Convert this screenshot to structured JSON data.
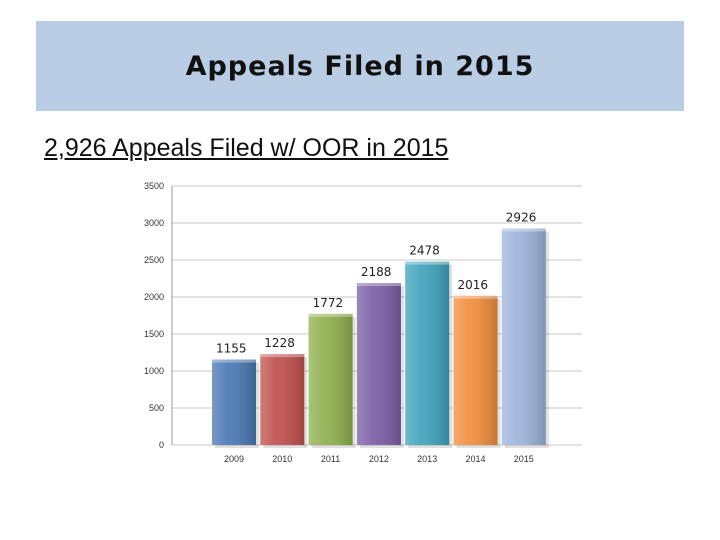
{
  "slide": {
    "title": "Appeals Filed in 2015",
    "subtitle": "2,926 Appeals Filed w/ OOR in 2015"
  },
  "chart_data": {
    "type": "bar",
    "categories": [
      "2009",
      "2010",
      "2011",
      "2012",
      "2013",
      "2014",
      "2015"
    ],
    "values": [
      1155,
      1228,
      1772,
      2188,
      2478,
      2016,
      2926
    ],
    "colors": [
      "#4a78b4",
      "#c0504d",
      "#8fb04e",
      "#7b5ea6",
      "#3fa3bd",
      "#f28d3c",
      "#9eb4dc"
    ],
    "ylim": [
      0,
      3500
    ],
    "yticks": [
      0,
      500,
      1000,
      1500,
      2000,
      2500,
      3000,
      3500
    ],
    "grid": true,
    "legend": "none",
    "title": "",
    "xlabel": "",
    "ylabel": ""
  }
}
